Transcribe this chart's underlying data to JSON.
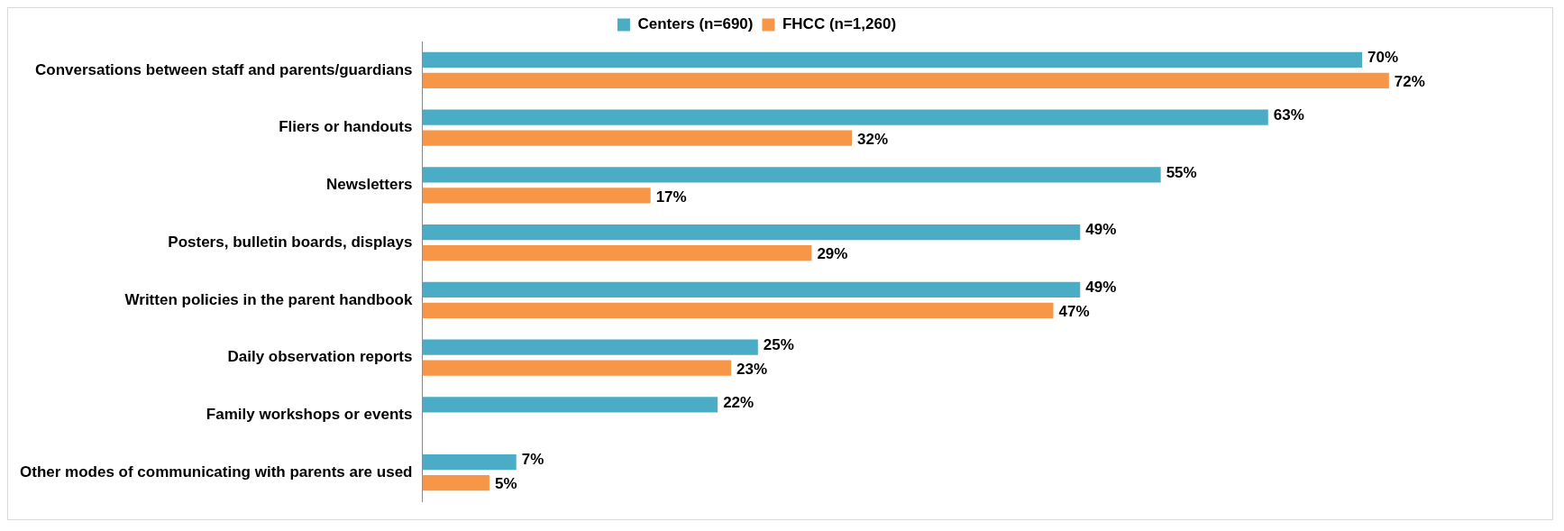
{
  "chart_data": {
    "type": "bar",
    "orientation": "horizontal",
    "legend": "top",
    "categories": [
      "Conversations between staff and parents/guardians",
      "Fliers or handouts",
      "Newsletters",
      "Posters, bulletin boards, displays",
      "Written policies in the parent handbook",
      "Daily observation reports",
      "Family workshops or events",
      "Other modes of communicating with parents are used"
    ],
    "series": [
      {
        "name": "Centers (n=690)",
        "color": "#4bacc6",
        "values": [
          70,
          63,
          55,
          49,
          49,
          25,
          22,
          7
        ],
        "value_labels": [
          "70%",
          "63%",
          "55%",
          "49%",
          "49%",
          "25%",
          "22%",
          "7%"
        ]
      },
      {
        "name": "FHCC (n=1,260)",
        "color": "#f79646",
        "values": [
          72,
          32,
          17,
          29,
          47,
          23,
          null,
          5
        ],
        "value_labels": [
          "72%",
          "32%",
          "17%",
          "29%",
          "47%",
          "23%",
          null,
          "5%"
        ]
      }
    ]
  }
}
